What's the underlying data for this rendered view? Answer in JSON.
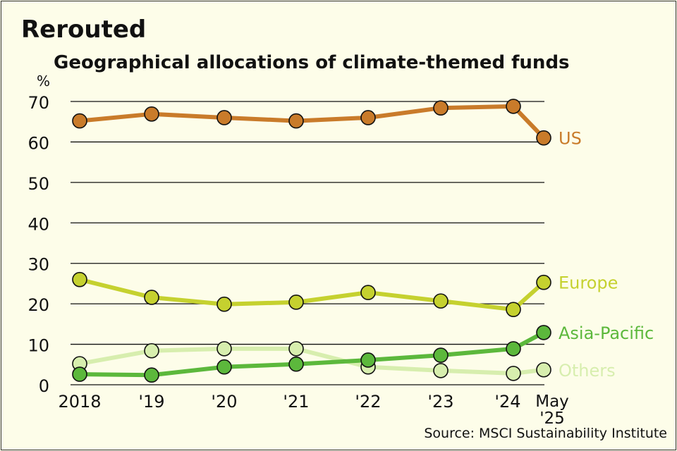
{
  "chart_data": {
    "type": "line",
    "title": "Rerouted",
    "subtitle": "Geographical allocations of climate-themed funds",
    "ylabel": "%",
    "xlabel": "",
    "ylim": [
      0,
      70
    ],
    "yticks": [
      "0",
      "10",
      "20",
      "30",
      "40",
      "50",
      "60",
      "70"
    ],
    "grid": true,
    "legend": "direct labels at line ends (right)",
    "categories": [
      "2018",
      "'19",
      "'20",
      "'21",
      "'22",
      "'23",
      "'24",
      "May '25"
    ],
    "series": [
      {
        "name": "US",
        "color": "#c97b2a",
        "values": [
          65.2,
          66.9,
          66.0,
          65.2,
          66.0,
          68.4,
          68.8,
          61.0
        ]
      },
      {
        "name": "Europe",
        "color": "#c5d12f",
        "values": [
          26.0,
          21.6,
          19.9,
          20.4,
          22.8,
          20.7,
          18.6,
          25.3
        ]
      },
      {
        "name": "Asia-Pacific",
        "color": "#5cb83c",
        "values": [
          2.6,
          2.4,
          4.4,
          5.1,
          6.1,
          7.3,
          8.9,
          12.9
        ]
      },
      {
        "name": "Others",
        "color": "#d7eeae",
        "values": [
          5.2,
          8.4,
          8.9,
          8.9,
          4.4,
          3.5,
          2.8,
          3.7
        ]
      }
    ],
    "source": "Source: MSCI Sustainability Institute"
  }
}
